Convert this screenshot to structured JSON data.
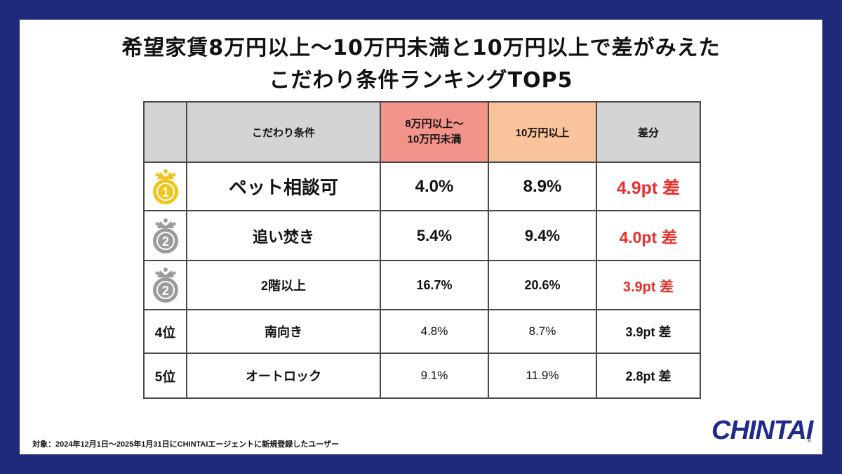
{
  "title": {
    "line1": "希望家賃8万円以上〜10万円未満と10万円以上で差がみえた",
    "line2": "こだわり条件ランキングTOP5"
  },
  "table": {
    "header": {
      "rank": "",
      "condition": "こだわり条件",
      "col_a": "8万円以上〜",
      "col_a2": "10万円未満",
      "col_b": "10万円以上",
      "diff": "差分"
    },
    "rows": [
      {
        "rank": "1",
        "condition": "ペット相談可",
        "a": "4.0%",
        "b": "8.9%",
        "diff": "4.9pt 差"
      },
      {
        "rank": "2",
        "condition": "追い焚き",
        "a": "5.4%",
        "b": "9.4%",
        "diff": "4.0pt 差"
      },
      {
        "rank": "2",
        "condition": "2階以上",
        "a": "16.7%",
        "b": "20.6%",
        "diff": "3.9pt 差"
      },
      {
        "rank": "4位",
        "condition": "南向き",
        "a": "4.8%",
        "b": "8.7%",
        "diff": "3.9pt 差"
      },
      {
        "rank": "5位",
        "condition": "オートロック",
        "a": "9.1%",
        "b": "11.9%",
        "diff": "2.8pt 差"
      }
    ]
  },
  "footnote": "対象：2024年12月1日〜2025年1月31日にCHINTAIエージェントに新規登録したユーザー",
  "logo": "CHINTAI",
  "colors": {
    "frame": "#1f2a7a",
    "header_a": "#f3948a",
    "header_b": "#f9c49b",
    "header_gray": "#d4d4d4",
    "diff_red": "#e8302e",
    "gold_medal": "#f0c419",
    "silver_medal": "#9b9b9b"
  },
  "chart_data": {
    "type": "table",
    "title": "希望家賃8万円以上〜10万円未満と10万円以上で差がみえた こだわり条件ランキングTOP5",
    "columns": [
      "こだわり条件",
      "8万円以上〜10万円未満",
      "10万円以上",
      "差分"
    ],
    "categories": [
      "ペット相談可",
      "追い焚き",
      "2階以上",
      "南向き",
      "オートロック"
    ],
    "series": [
      {
        "name": "8万円以上〜10万円未満",
        "values": [
          4.0,
          5.4,
          16.7,
          4.8,
          9.1
        ]
      },
      {
        "name": "10万円以上",
        "values": [
          8.9,
          9.4,
          20.6,
          8.7,
          11.9
        ]
      },
      {
        "name": "差分",
        "values": [
          4.9,
          4.0,
          3.9,
          3.9,
          2.8
        ]
      }
    ],
    "ranks": [
      "1",
      "2",
      "2",
      "4位",
      "5位"
    ]
  }
}
